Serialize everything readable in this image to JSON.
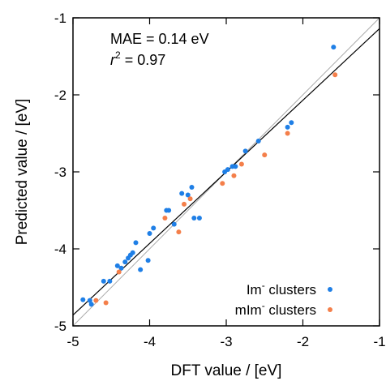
{
  "chart_data": {
    "type": "scatter",
    "xlabel": "DFT value / [eV]",
    "ylabel": "Predicted value / [eV]",
    "xlim": [
      -5,
      -1
    ],
    "ylim": [
      -5,
      -1
    ],
    "xticks": [
      -5,
      -4,
      -3,
      -2,
      -1
    ],
    "yticks": [
      -5,
      -4,
      -3,
      -2,
      -1
    ],
    "grid": false,
    "legend_position": "bottom-right",
    "annotations": {
      "mae": "MAE = 0.14 eV",
      "r2_var": "r",
      "r2_sup": "2",
      "r2_rest": " = 0.97"
    },
    "reference_lines": [
      {
        "name": "y = x",
        "color": "#aaaaaa",
        "from": [
          -5,
          -5
        ],
        "to": [
          -1,
          -1
        ]
      },
      {
        "name": "fit",
        "color": "#000000",
        "from": [
          -5,
          -4.86
        ],
        "to": [
          -1,
          -1.14
        ]
      }
    ],
    "series": [
      {
        "name": "Im",
        "sup": "-",
        "label_rest": " clusters",
        "color": "#1f7fe6",
        "points": [
          [
            -4.87,
            -4.66
          ],
          [
            -4.78,
            -4.67
          ],
          [
            -4.76,
            -4.72
          ],
          [
            -4.6,
            -4.42
          ],
          [
            -4.52,
            -4.42
          ],
          [
            -4.42,
            -4.22
          ],
          [
            -4.37,
            -4.25
          ],
          [
            -4.32,
            -4.17
          ],
          [
            -4.28,
            -4.12
          ],
          [
            -4.25,
            -4.08
          ],
          [
            -4.22,
            -4.05
          ],
          [
            -4.18,
            -3.92
          ],
          [
            -4.12,
            -4.27
          ],
          [
            -4.02,
            -4.15
          ],
          [
            -4.0,
            -3.8
          ],
          [
            -3.95,
            -3.73
          ],
          [
            -3.78,
            -3.5
          ],
          [
            -3.75,
            -3.5
          ],
          [
            -3.68,
            -3.68
          ],
          [
            -3.58,
            -3.28
          ],
          [
            -3.5,
            -3.3
          ],
          [
            -3.45,
            -3.2
          ],
          [
            -3.42,
            -3.6
          ],
          [
            -3.35,
            -3.6
          ],
          [
            -3.02,
            -3.0
          ],
          [
            -2.98,
            -2.97
          ],
          [
            -2.92,
            -2.93
          ],
          [
            -2.88,
            -2.93
          ],
          [
            -2.75,
            -2.73
          ],
          [
            -2.58,
            -2.6
          ],
          [
            -2.2,
            -2.42
          ],
          [
            -2.15,
            -2.36
          ],
          [
            -1.6,
            -1.38
          ]
        ]
      },
      {
        "name": "mIm",
        "sup": "-",
        "label_rest": " clusters",
        "color": "#f47f4a",
        "points": [
          [
            -4.7,
            -4.67
          ],
          [
            -4.57,
            -4.7
          ],
          [
            -4.4,
            -4.3
          ],
          [
            -3.8,
            -3.6
          ],
          [
            -3.62,
            -3.78
          ],
          [
            -3.55,
            -3.42
          ],
          [
            -3.47,
            -3.35
          ],
          [
            -3.05,
            -3.15
          ],
          [
            -2.9,
            -3.05
          ],
          [
            -2.8,
            -2.9
          ],
          [
            -2.5,
            -2.78
          ],
          [
            -2.2,
            -2.5
          ],
          [
            -1.58,
            -1.74
          ]
        ]
      }
    ]
  }
}
